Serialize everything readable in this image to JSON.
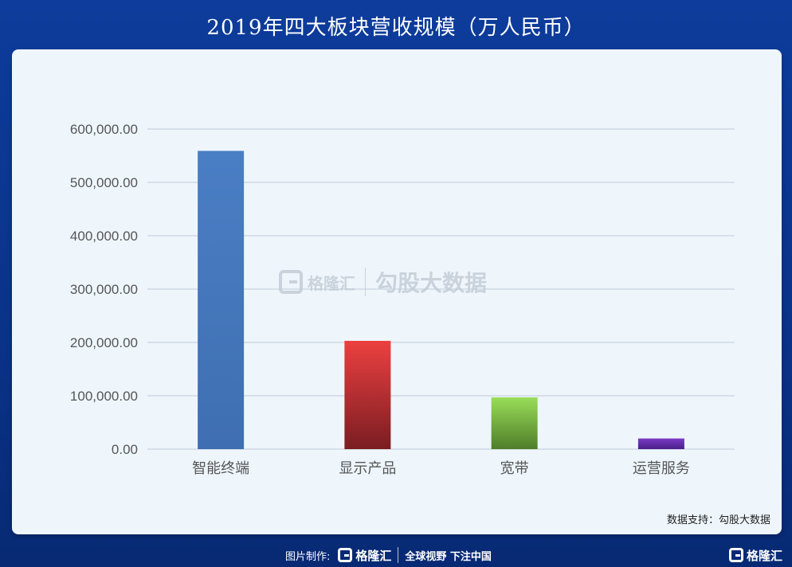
{
  "header": {
    "title": "2019年四大板块营收规模（万人民币）"
  },
  "chart_data": {
    "type": "bar",
    "categories": [
      "智能终端",
      "显示产品",
      "宽带",
      "运营服务"
    ],
    "values": [
      559000,
      203000,
      97000,
      20000
    ],
    "ylim": [
      0,
      600000
    ],
    "yticks": [
      "0.00",
      "100,000.00",
      "200,000.00",
      "300,000.00",
      "400,000.00",
      "500,000.00",
      "600,000.00"
    ],
    "ytick_values": [
      0,
      100000,
      200000,
      300000,
      400000,
      500000,
      600000
    ],
    "bar_colors": [
      [
        "#4a7ec4",
        "#3f6fb2"
      ],
      [
        "#ec4040",
        "#7a1d22"
      ],
      [
        "#98dd58",
        "#4f7d2a"
      ],
      [
        "#7b3bc6",
        "#4a1f88"
      ]
    ],
    "grid": true,
    "legend": "none"
  },
  "watermark": {
    "brand": "格隆汇",
    "text": "勾股大数据"
  },
  "source": {
    "text": "数据支持：勾股大数据"
  },
  "footer": {
    "credit": "图片制作:",
    "brand": "格隆汇",
    "slogan": "全球视野 下注中国",
    "corner_brand": "格隆汇"
  }
}
